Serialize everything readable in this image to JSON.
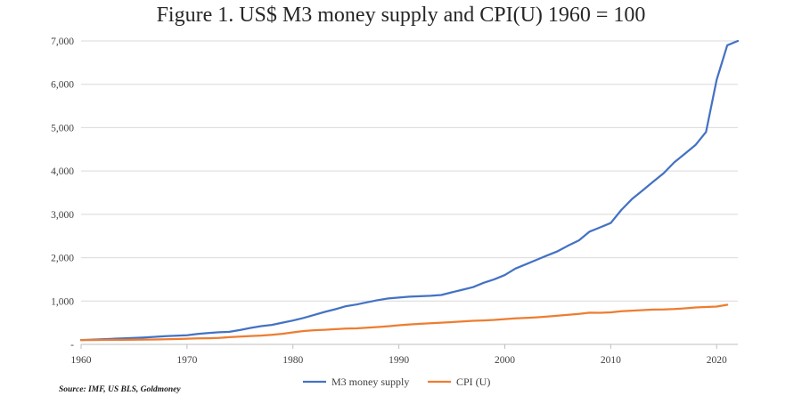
{
  "chart_data": {
    "type": "line",
    "title": "Figure 1. US$ M3 money supply and CPI(U) 1960 = 100",
    "xlabel": "",
    "ylabel": "",
    "xlim": [
      1960,
      2022
    ],
    "ylim": [
      0,
      7000
    ],
    "x_ticks": [
      "1960",
      "1970",
      "1980",
      "1990",
      "2000",
      "2010",
      "2020"
    ],
    "y_ticks": [
      "-",
      "1,000",
      "2,000",
      "3,000",
      "4,000",
      "5,000",
      "6,000",
      "7,000"
    ],
    "grid": "horizontal",
    "legend": "bottom",
    "source": "Source: IMF, US BLS, Goldmoney",
    "series": [
      {
        "name": "M3 money supply",
        "color": "#4472c4",
        "x": [
          1960,
          1961,
          1962,
          1963,
          1964,
          1965,
          1966,
          1967,
          1968,
          1969,
          1970,
          1971,
          1972,
          1973,
          1974,
          1975,
          1976,
          1977,
          1978,
          1979,
          1980,
          1981,
          1982,
          1983,
          1984,
          1985,
          1986,
          1987,
          1988,
          1989,
          1990,
          1991,
          1992,
          1993,
          1994,
          1995,
          1996,
          1997,
          1998,
          1999,
          2000,
          2001,
          2002,
          2003,
          2004,
          2005,
          2006,
          2007,
          2008,
          2009,
          2010,
          2011,
          2012,
          2013,
          2014,
          2015,
          2016,
          2017,
          2018,
          2019,
          2020,
          2021,
          2022
        ],
        "values": [
          100,
          108,
          118,
          130,
          140,
          150,
          160,
          175,
          190,
          200,
          210,
          240,
          260,
          280,
          290,
          330,
          380,
          420,
          450,
          500,
          550,
          610,
          680,
          750,
          810,
          880,
          920,
          970,
          1020,
          1060,
          1080,
          1100,
          1110,
          1120,
          1140,
          1200,
          1260,
          1320,
          1420,
          1500,
          1600,
          1750,
          1850,
          1950,
          2050,
          2150,
          2280,
          2400,
          2600,
          2700,
          2800,
          3100,
          3350,
          3550,
          3750,
          3950,
          4200,
          4400,
          4600,
          4900,
          6100,
          6900,
          7000
        ]
      },
      {
        "name": "CPI (U)",
        "color": "#ed7d31",
        "x": [
          1960,
          1961,
          1962,
          1963,
          1964,
          1965,
          1966,
          1967,
          1968,
          1969,
          1970,
          1971,
          1972,
          1973,
          1974,
          1975,
          1976,
          1977,
          1978,
          1979,
          1980,
          1981,
          1982,
          1983,
          1984,
          1985,
          1986,
          1987,
          1988,
          1989,
          1990,
          1991,
          1992,
          1993,
          1994,
          1995,
          1996,
          1997,
          1998,
          1999,
          2000,
          2001,
          2002,
          2003,
          2004,
          2005,
          2006,
          2007,
          2008,
          2009,
          2010,
          2011,
          2012,
          2013,
          2014,
          2015,
          2016,
          2017,
          2018,
          2019,
          2020,
          2021
        ],
        "values": [
          100,
          101,
          102,
          104,
          105,
          107,
          110,
          113,
          118,
          124,
          131,
          137,
          141,
          150,
          166,
          181,
          192,
          204,
          220,
          245,
          278,
          307,
          326,
          336,
          351,
          363,
          370,
          384,
          400,
          419,
          441,
          460,
          474,
          488,
          501,
          514,
          529,
          544,
          553,
          565,
          584,
          600,
          610,
          624,
          640,
          662,
          684,
          703,
          730,
          728,
          740,
          763,
          779,
          791,
          803,
          804,
          814,
          831,
          851,
          862,
          873,
          914
        ]
      }
    ]
  }
}
